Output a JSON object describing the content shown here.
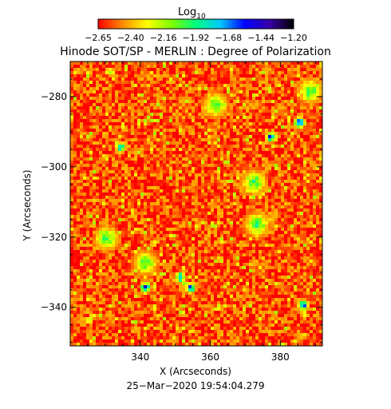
{
  "colorbar": {
    "title": "Log",
    "title_sub": "10",
    "ticks": [
      "-2.65",
      "-2.40",
      "-2.16",
      "-1.92",
      "-1.68",
      "-1.44",
      "-1.20"
    ],
    "range": [
      -2.65,
      -1.2
    ],
    "colors": [
      "#ff0000",
      "#ff8c00",
      "#ffff00",
      "#7fff00",
      "#00ff7f",
      "#00c8ff",
      "#0000ff",
      "#3a00a8",
      "#000000"
    ]
  },
  "chart_data": {
    "type": "heatmap",
    "title": "Hinode SOT/SP - MERLIN : Degree of Polarization",
    "xlabel": "X (Arcseconds)",
    "ylabel": "Y (Arcseconds)",
    "xlim": [
      320,
      392
    ],
    "ylim": [
      -351,
      -270
    ],
    "x_ticks": [
      340,
      360,
      380
    ],
    "y_ticks": [
      -280,
      -300,
      -320,
      -340
    ],
    "x_tick_labels": [
      "340",
      "360",
      "380"
    ],
    "y_tick_labels": [
      "−280",
      "−300",
      "−320",
      "−340"
    ],
    "value_scale": "log10",
    "value_range": [
      -2.65,
      -1.2
    ],
    "dominant_value": -2.6,
    "features": [
      {
        "kind": "blue patch",
        "x": 334,
        "y": -294,
        "value": -1.7
      },
      {
        "kind": "blue patch",
        "x": 377,
        "y": -291,
        "value": -1.5
      },
      {
        "kind": "blue patch",
        "x": 385,
        "y": -287,
        "value": -1.5
      },
      {
        "kind": "blue patch",
        "x": 341,
        "y": -334,
        "value": -1.45
      },
      {
        "kind": "blue patch",
        "x": 351,
        "y": -331,
        "value": -1.6
      },
      {
        "kind": "blue patch",
        "x": 354,
        "y": -334,
        "value": -1.6
      },
      {
        "kind": "blue patch",
        "x": 386,
        "y": -339,
        "value": -1.45
      },
      {
        "kind": "green network",
        "x": 372,
        "y": -304,
        "value": -1.95
      },
      {
        "kind": "green network",
        "x": 373,
        "y": -316,
        "value": -1.95
      },
      {
        "kind": "green network",
        "x": 341,
        "y": -327,
        "value": -2.0
      },
      {
        "kind": "green network",
        "x": 330,
        "y": -320,
        "value": -2.0
      },
      {
        "kind": "green network",
        "x": 388,
        "y": -278,
        "value": -2.0
      },
      {
        "kind": "green network",
        "x": 361,
        "y": -282,
        "value": -2.0
      }
    ]
  },
  "footer": {
    "timestamp": "25−Mar−2020  19:54:04.279"
  }
}
